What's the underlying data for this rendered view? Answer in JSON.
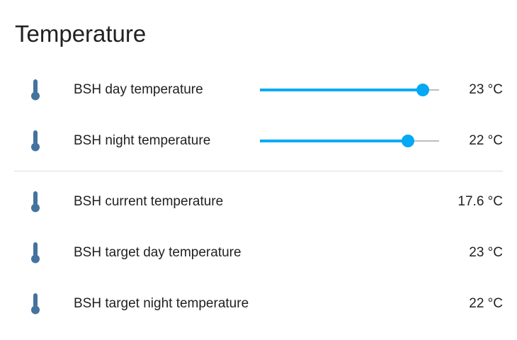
{
  "card": {
    "title": "Temperature"
  },
  "colors": {
    "icon": "#44739e",
    "accent": "#03a9f4",
    "track": "#bdbdbd",
    "text": "#212121",
    "divider": "#dcdcdc"
  },
  "sliders": [
    {
      "icon": "thermometer-icon",
      "label": "BSH day temperature",
      "value_text": "23 °C",
      "level_fraction": 0.91
    },
    {
      "icon": "thermometer-icon",
      "label": "BSH night temperature",
      "value_text": "22 °C",
      "level_fraction": 0.825
    }
  ],
  "sensors": [
    {
      "icon": "thermometer-icon",
      "label": "BSH current temperature",
      "value_text": "17.6 °C"
    },
    {
      "icon": "thermometer-icon",
      "label": "BSH target day temperature",
      "value_text": "23 °C"
    },
    {
      "icon": "thermometer-icon",
      "label": "BSH target night temperature",
      "value_text": "22 °C"
    }
  ]
}
